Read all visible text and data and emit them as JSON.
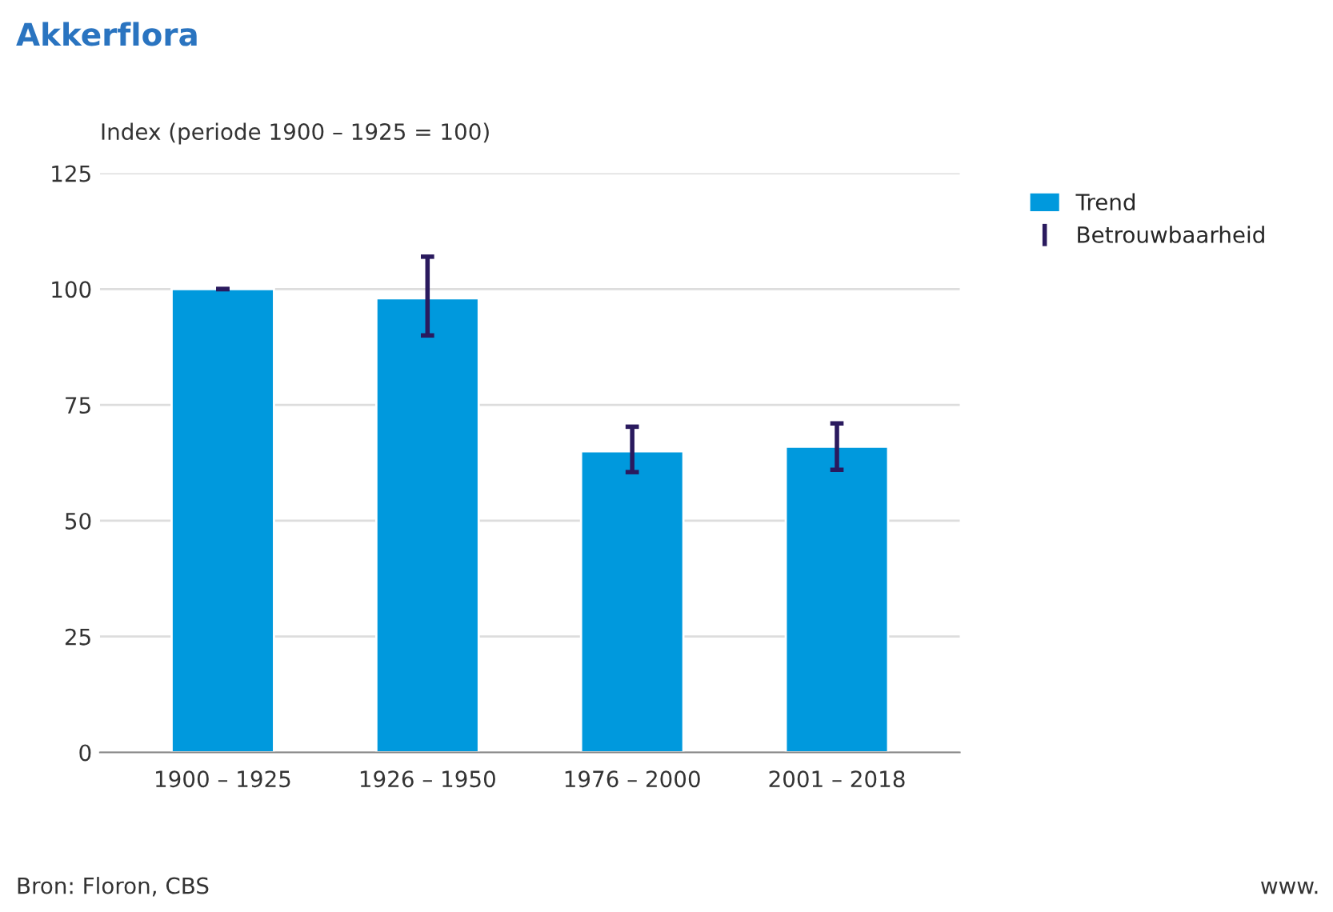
{
  "chart_data": {
    "type": "bar",
    "title": "Akkerflora",
    "ylabel": "Index (periode 1900 – 1925 = 100)",
    "categories": [
      "1900 – 1925",
      "1926 – 1950",
      "1976 – 2000",
      "2001 – 2018"
    ],
    "series": [
      {
        "name": "Trend",
        "color": "#0099dd",
        "values": [
          100,
          98,
          65,
          66
        ],
        "errors": [
          [
            100,
            100
          ],
          [
            90,
            107
          ],
          [
            60.5,
            70.3
          ],
          [
            61,
            71
          ]
        ]
      }
    ],
    "ylim": [
      0,
      125
    ],
    "yticks": [
      0,
      25,
      50,
      75,
      100,
      125
    ],
    "grid": "y",
    "legend": "top right",
    "annotations": [
      "Betrouwbaarheid",
      "Bron: Floron, CBS",
      "www."
    ]
  }
}
